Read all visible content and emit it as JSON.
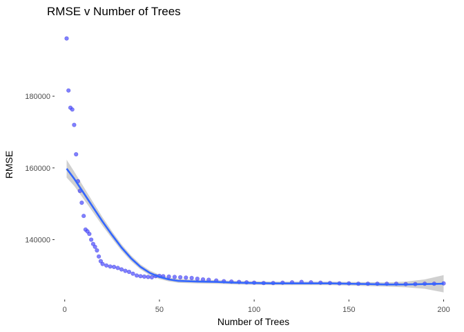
{
  "chart_data": {
    "type": "scatter",
    "title": "RMSE v Number of Trees",
    "xlabel": "Number of Trees",
    "ylabel": "RMSE",
    "xlim": [
      -5,
      202
    ],
    "ylim": [
      123500,
      199500
    ],
    "x_ticks": [
      0,
      50,
      100,
      150,
      200
    ],
    "y_ticks": [
      140000,
      160000,
      180000
    ],
    "x_tick_labels": [
      "0",
      "50",
      "100",
      "150",
      "200"
    ],
    "y_tick_labels": [
      "140000",
      "160000",
      "180000"
    ],
    "grid": false,
    "legend": "none",
    "colors": {
      "points": "#4a4aff",
      "smooth_line": "#3366ff",
      "confidence_band": "#c8c8c8"
    },
    "series": [
      {
        "kind": "points",
        "x": [
          1,
          2,
          3,
          4,
          5,
          6,
          7,
          8,
          9,
          10,
          11,
          12,
          13,
          14,
          15,
          16,
          17,
          18,
          19,
          20,
          22,
          24,
          26,
          28,
          30,
          32,
          34,
          36,
          38,
          40,
          42,
          44,
          46,
          48,
          50,
          52,
          55,
          58,
          61,
          64,
          67,
          70,
          73,
          76,
          80,
          84,
          88,
          92,
          96,
          100,
          105,
          110,
          115,
          120,
          125,
          130,
          135,
          140,
          145,
          150,
          155,
          160,
          165,
          170,
          175,
          180,
          185,
          190,
          195,
          200
        ],
        "y": [
          196100,
          181600,
          176800,
          176300,
          172000,
          163800,
          156300,
          153600,
          150300,
          146600,
          142800,
          142300,
          141600,
          140000,
          138800,
          138000,
          137000,
          135300,
          134000,
          133200,
          132800,
          132500,
          132400,
          132100,
          131700,
          131300,
          131000,
          130500,
          130000,
          129800,
          129700,
          129600,
          129500,
          129800,
          129900,
          129800,
          129700,
          129600,
          129500,
          129400,
          129300,
          129100,
          128900,
          128800,
          128600,
          128400,
          128300,
          128200,
          128100,
          128000,
          127900,
          127900,
          128000,
          128100,
          128200,
          128100,
          128000,
          127900,
          127800,
          127800,
          127700,
          127700,
          127700,
          127700,
          127700,
          127600,
          127600,
          127700,
          127700,
          127800
        ]
      },
      {
        "kind": "smooth",
        "x": [
          1,
          5,
          10,
          15,
          20,
          25,
          30,
          35,
          40,
          45,
          50,
          55,
          60,
          70,
          80,
          90,
          100,
          110,
          120,
          130,
          140,
          150,
          160,
          170,
          180,
          190,
          200
        ],
        "y": [
          159800,
          157000,
          153000,
          149000,
          145000,
          141300,
          137800,
          134800,
          132400,
          130700,
          129600,
          128900,
          128500,
          128300,
          128200,
          128000,
          127900,
          127800,
          127800,
          127800,
          127800,
          127700,
          127600,
          127500,
          127500,
          127600,
          127700
        ],
        "band_halfwidth": [
          2500,
          2000,
          1700,
          1400,
          1200,
          1000,
          900,
          800,
          700,
          650,
          600,
          550,
          550,
          500,
          500,
          500,
          500,
          500,
          500,
          500,
          500,
          500,
          550,
          600,
          800,
          1300,
          2400
        ]
      }
    ]
  }
}
